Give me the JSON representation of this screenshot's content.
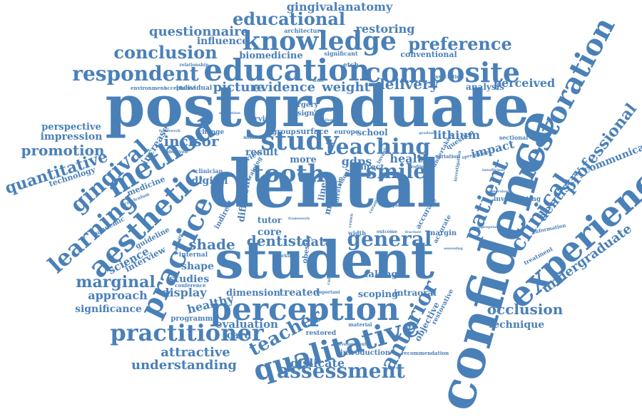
{
  "word_cloud": {
    "color": "#4a80b8",
    "words": [
      "postgraduate",
      "dental",
      "student",
      "confidence",
      "perception",
      "education",
      "knowledge",
      "composite",
      "experience",
      "restoration",
      "aesthetic",
      "practice",
      "method",
      "learning",
      "gingival",
      "qualitative",
      "practitioner",
      "assessment",
      "tooth",
      "study",
      "teaching",
      "smile",
      "general",
      "respondent",
      "conclusion",
      "educational",
      "questionnaire",
      "preference",
      "gingivalanatomy",
      "patient",
      "clinical",
      "professional",
      "anterior",
      "teacher",
      "quantitative",
      "promotion",
      "incisor",
      "marginal",
      "occlusion",
      "undergraduate",
      "dentistry",
      "communication",
      "technique",
      "dentist",
      "data",
      "shade",
      "delivery",
      "evidence",
      "picture",
      "weight",
      "perceived",
      "lithium",
      "impact",
      "gdps",
      "health",
      "restoring",
      "influence",
      "biomedicine",
      "conventional",
      "understanding",
      "attractive",
      "dislicate",
      "evaluation",
      "card",
      "science",
      "approach",
      "display",
      "significance",
      "healthy",
      "interview",
      "studies",
      "shape",
      "dimension",
      "treated",
      "scoping",
      "intraoral",
      "taking",
      "core",
      "tutor",
      "digital",
      "result",
      "more",
      "impression",
      "perspective",
      "increase",
      "technology",
      "analysis",
      "school",
      "surface",
      "group",
      "europe",
      "design",
      "varying",
      "surgery",
      "software",
      "change",
      "architecture",
      "significant",
      "etch",
      "individual",
      "environment",
      "acceptance",
      "relationship",
      "ortho",
      "programme",
      "conference",
      "guideline",
      "pandemic",
      "medicine",
      "curriculum",
      "clinician",
      "review",
      "training",
      "internal",
      "indirect",
      "different",
      "visual",
      "most",
      "line",
      "obesity",
      "porcelain",
      "direct",
      "invasive",
      "profile",
      "variation",
      "question",
      "sectional",
      "investigating",
      "information",
      "treatment",
      "margin",
      "accurate",
      "accuracy",
      "restored",
      "material",
      "introduction",
      "recommendation",
      "objective",
      "restorative",
      "development",
      "important",
      "longevity",
      "working",
      "observed",
      "framework",
      "motivation",
      "graduate",
      "association",
      "spreadsheet",
      "laboratory",
      "insufficient",
      "investigation",
      "appropriate",
      "assessing",
      "undertaken",
      "square",
      "width",
      "crown",
      "ceramic",
      "outcome",
      "fracture",
      "framework",
      "colour",
      "facilitate",
      "challenge"
    ]
  }
}
